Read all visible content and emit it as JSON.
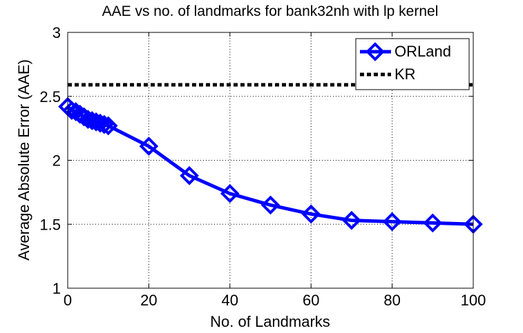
{
  "chart_data": {
    "type": "line",
    "title": "AAE vs no. of landmarks for bank32nh with lp kernel",
    "xlabel": "No. of Landmarks",
    "ylabel": "Average Absolute Error (AAE)",
    "xlim": [
      0,
      100
    ],
    "ylim": [
      1,
      3
    ],
    "xticks": [
      "0",
      "20",
      "40",
      "60",
      "80",
      "100"
    ],
    "yticks": [
      "1",
      "1.5",
      "2",
      "2.5",
      "3"
    ],
    "grid": true,
    "legend_position": "top-right",
    "series": [
      {
        "name": "ORLand",
        "style": "solid line with diamond markers",
        "color": "#0000ff",
        "x": [
          0,
          1,
          2,
          3,
          4,
          5,
          6,
          7,
          8,
          9,
          10,
          20,
          30,
          40,
          50,
          60,
          70,
          80,
          90,
          100
        ],
        "y": [
          2.42,
          2.39,
          2.38,
          2.36,
          2.34,
          2.32,
          2.31,
          2.3,
          2.29,
          2.28,
          2.27,
          2.11,
          1.88,
          1.74,
          1.65,
          1.58,
          1.53,
          1.52,
          1.51,
          1.5
        ]
      },
      {
        "name": "KR",
        "style": "dotted line",
        "color": "#000000",
        "x": [
          0,
          100
        ],
        "y": [
          2.59,
          2.59
        ]
      }
    ]
  }
}
